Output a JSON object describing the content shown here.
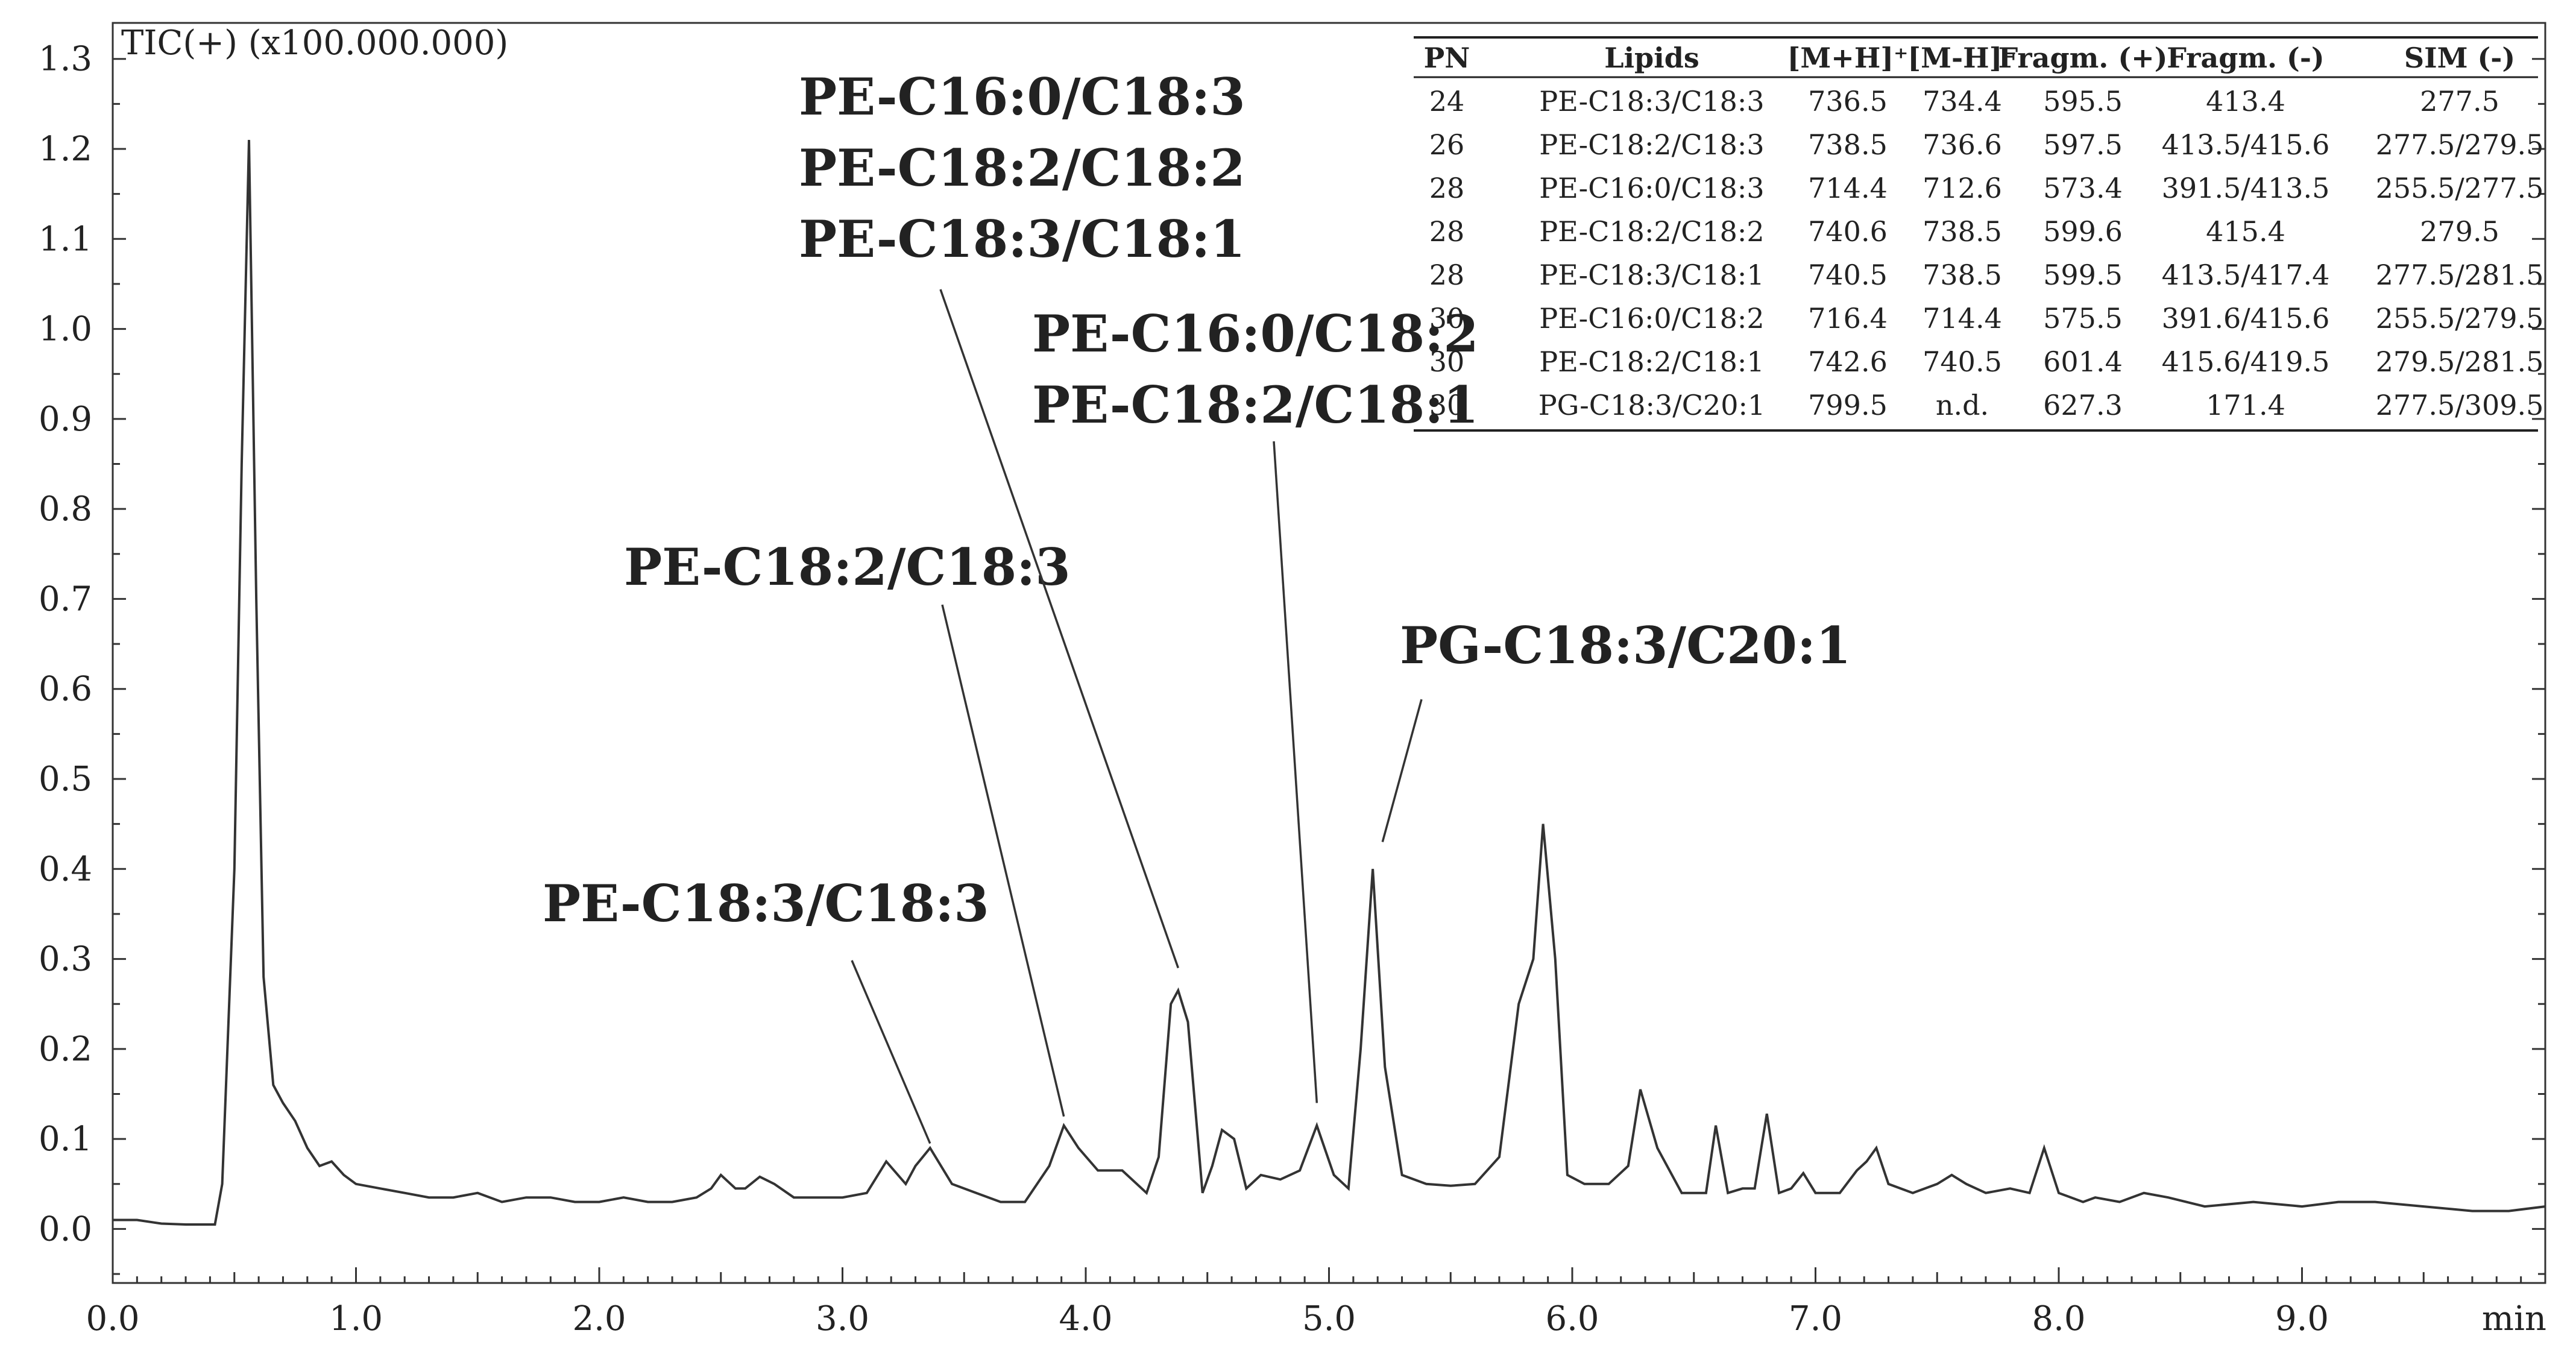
{
  "chart_data": {
    "type": "line",
    "title": "",
    "ylabel": "TIC(+) (x100.000.000)",
    "xlabel": "min",
    "xlim": [
      0.0,
      10.0
    ],
    "ylim": [
      -0.06,
      1.34
    ],
    "x_ticks": [
      0.0,
      1.0,
      2.0,
      3.0,
      4.0,
      5.0,
      6.0,
      7.0,
      8.0,
      9.0
    ],
    "x_tick_labels": [
      "0.0",
      "1.0",
      "2.0",
      "3.0",
      "4.0",
      "5.0",
      "6.0",
      "7.0",
      "8.0",
      "9.0"
    ],
    "y_ticks": [
      0.0,
      0.1,
      0.2,
      0.3,
      0.4,
      0.5,
      0.6,
      0.7,
      0.8,
      0.9,
      1.0,
      1.1,
      1.2,
      1.3
    ],
    "y_tick_labels": [
      "0.0",
      "0.1",
      "0.2",
      "0.3",
      "0.4",
      "0.5",
      "0.6",
      "0.7",
      "0.8",
      "0.9",
      "1.0",
      "1.1",
      "1.2",
      "1.3"
    ],
    "grid": false,
    "series": [
      {
        "x": [
          0.0,
          0.1,
          0.2,
          0.3,
          0.42,
          0.45,
          0.5,
          0.53,
          0.56,
          0.59,
          0.62,
          0.66,
          0.7,
          0.75,
          0.8,
          0.85,
          0.9,
          0.95,
          1.0,
          1.1,
          1.2,
          1.3,
          1.4,
          1.5,
          1.6,
          1.7,
          1.8,
          1.9,
          2.0,
          2.1,
          2.2,
          2.3,
          2.4,
          2.46,
          2.5,
          2.56,
          2.6,
          2.66,
          2.72,
          2.8,
          2.9,
          3.0,
          3.1,
          3.18,
          3.26,
          3.3,
          3.36,
          3.45,
          3.55,
          3.65,
          3.75,
          3.85,
          3.91,
          3.97,
          4.05,
          4.15,
          4.25,
          4.3,
          4.35,
          4.38,
          4.42,
          4.48,
          4.52,
          4.56,
          4.61,
          4.66,
          4.72,
          4.8,
          4.88,
          4.95,
          5.02,
          5.08,
          5.13,
          5.18,
          5.23,
          5.3,
          5.4,
          5.5,
          5.6,
          5.7,
          5.78,
          5.84,
          5.88,
          5.93,
          5.98,
          6.05,
          6.15,
          6.23,
          6.28,
          6.35,
          6.45,
          6.55,
          6.59,
          6.64,
          6.7,
          6.75,
          6.8,
          6.85,
          6.9,
          6.95,
          7.0,
          7.1,
          7.17,
          7.21,
          7.25,
          7.3,
          7.4,
          7.5,
          7.56,
          7.62,
          7.7,
          7.8,
          7.88,
          7.94,
          8.0,
          8.1,
          8.15,
          8.25,
          8.35,
          8.45,
          8.6,
          8.8,
          9.0,
          9.15,
          9.3,
          9.5,
          9.7,
          9.85,
          10.0
        ],
        "y": [
          0.01,
          0.01,
          0.006,
          0.005,
          0.005,
          0.05,
          0.4,
          0.85,
          1.21,
          0.7,
          0.28,
          0.16,
          0.14,
          0.12,
          0.09,
          0.07,
          0.075,
          0.06,
          0.05,
          0.045,
          0.04,
          0.035,
          0.035,
          0.04,
          0.03,
          0.035,
          0.035,
          0.03,
          0.03,
          0.035,
          0.03,
          0.03,
          0.035,
          0.045,
          0.06,
          0.045,
          0.045,
          0.058,
          0.05,
          0.035,
          0.035,
          0.035,
          0.04,
          0.075,
          0.05,
          0.07,
          0.09,
          0.05,
          0.04,
          0.03,
          0.03,
          0.07,
          0.115,
          0.09,
          0.065,
          0.065,
          0.04,
          0.08,
          0.25,
          0.265,
          0.23,
          0.04,
          0.07,
          0.11,
          0.1,
          0.045,
          0.06,
          0.055,
          0.065,
          0.115,
          0.06,
          0.045,
          0.2,
          0.4,
          0.18,
          0.06,
          0.05,
          0.048,
          0.05,
          0.08,
          0.25,
          0.3,
          0.45,
          0.3,
          0.06,
          0.05,
          0.05,
          0.07,
          0.155,
          0.09,
          0.04,
          0.04,
          0.115,
          0.04,
          0.045,
          0.045,
          0.128,
          0.04,
          0.045,
          0.062,
          0.04,
          0.04,
          0.065,
          0.075,
          0.09,
          0.05,
          0.04,
          0.05,
          0.06,
          0.05,
          0.04,
          0.045,
          0.04,
          0.09,
          0.04,
          0.03,
          0.035,
          0.03,
          0.04,
          0.035,
          0.025,
          0.03,
          0.025,
          0.03,
          0.03,
          0.025,
          0.02,
          0.02,
          0.025
        ]
      }
    ],
    "annotations": [
      {
        "lines": [
          "PE-C18:3/C18:3"
        ],
        "points_to": [
          3.36,
          0.095
        ]
      },
      {
        "lines": [
          "PE-C18:2/C18:3"
        ],
        "points_to": [
          3.91,
          0.125
        ]
      },
      {
        "lines": [
          "PE-C16:0/C18:3",
          "PE-C18:2/C18:2",
          "PE-C18:3/C18:1"
        ],
        "points_to": [
          4.38,
          0.29
        ]
      },
      {
        "lines": [
          "PE-C16:0/C18:2",
          "PE-C18:2/C18:1"
        ],
        "points_to": [
          4.95,
          0.14
        ]
      },
      {
        "lines": [
          "PG-C18:3/C20:1"
        ],
        "points_to": [
          5.22,
          0.43
        ]
      }
    ],
    "table": {
      "columns": [
        "PN",
        "Lipids",
        "[M+H]⁺",
        "[M-H]⁻",
        "Fragm. (+)",
        "Fragm. (-)",
        "SIM (-)"
      ],
      "rows": [
        [
          "24",
          "PE-C18:3/C18:3",
          "736.5",
          "734.4",
          "595.5",
          "413.4",
          "277.5"
        ],
        [
          "26",
          "PE-C18:2/C18:3",
          "738.5",
          "736.6",
          "597.5",
          "413.5/415.6",
          "277.5/279.5"
        ],
        [
          "28",
          "PE-C16:0/C18:3",
          "714.4",
          "712.6",
          "573.4",
          "391.5/413.5",
          "255.5/277.5"
        ],
        [
          "28",
          "PE-C18:2/C18:2",
          "740.6",
          "738.5",
          "599.6",
          "415.4",
          "279.5"
        ],
        [
          "28",
          "PE-C18:3/C18:1",
          "740.5",
          "738.5",
          "599.5",
          "413.5/417.4",
          "277.5/281.5"
        ],
        [
          "30",
          "PE-C16:0/C18:2",
          "716.4",
          "714.4",
          "575.5",
          "391.6/415.6",
          "255.5/279.5"
        ],
        [
          "30",
          "PE-C18:2/C18:1",
          "742.6",
          "740.5",
          "601.4",
          "415.6/419.5",
          "279.5/281.5"
        ],
        [
          "30",
          "PG-C18:3/C20:1",
          "799.5",
          "n.d.",
          "627.3",
          "171.4",
          "277.5/309.5"
        ]
      ]
    }
  }
}
